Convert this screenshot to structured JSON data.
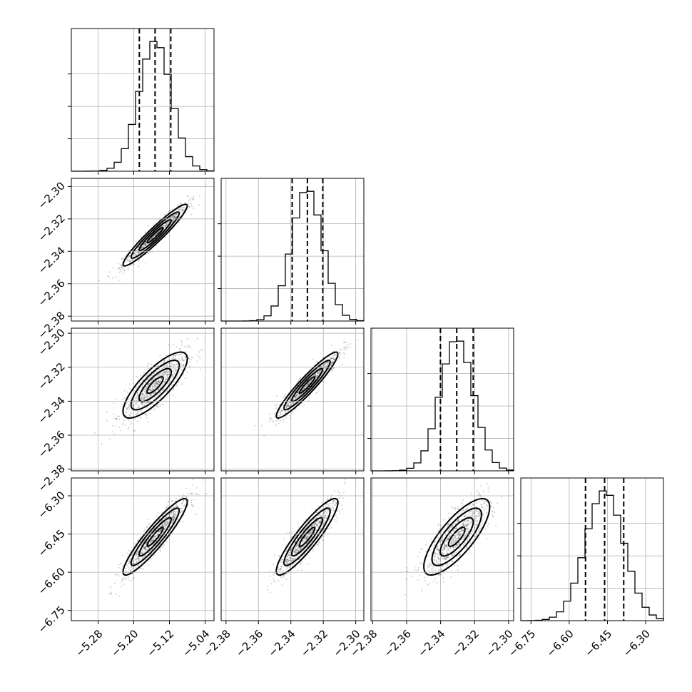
{
  "chart_data": {
    "type": "corner",
    "title": "",
    "grid": true,
    "parameters": [
      {
        "index": 0,
        "mean": -5.152,
        "std": 0.036,
        "range": [
          -5.34,
          -5.02
        ],
        "ticks": [
          -5.28,
          -5.2,
          -5.12,
          -5.04
        ],
        "tick_labels": [
          "−5.28",
          "−5.20",
          "−5.12",
          "−5.04"
        ],
        "quantiles": [
          -5.1875,
          -5.1522,
          -5.117
        ]
      },
      {
        "index": 1,
        "mean": -2.33,
        "std": 0.0095,
        "range": [
          -2.383,
          -2.295
        ],
        "ticks": [
          -2.38,
          -2.36,
          -2.34,
          -2.32,
          -2.3
        ],
        "tick_labels": [
          "−2.38",
          "−2.36",
          "−2.34",
          "−2.32",
          "−2.30"
        ],
        "quantiles": [
          -2.3392,
          -2.3298,
          -2.3203
        ]
      },
      {
        "index": 2,
        "mean": -2.3305,
        "std": 0.0097,
        "range": [
          -2.381,
          -2.297
        ],
        "ticks": [
          -2.38,
          -2.36,
          -2.34,
          -2.32,
          -2.3
        ],
        "tick_labels": [
          "−2.38",
          "−2.36",
          "−2.34",
          "−2.32",
          "−2.30"
        ],
        "quantiles": [
          -2.3401,
          -2.3305,
          -2.3208
        ]
      },
      {
        "index": 3,
        "mean": -6.461,
        "std": 0.075,
        "range": [
          -6.79,
          -6.23
        ],
        "ticks": [
          -6.75,
          -6.6,
          -6.45,
          -6.3
        ],
        "tick_labels": [
          "−6.75",
          "−6.60",
          "−6.45",
          "−6.30"
        ],
        "quantiles": [
          -6.536,
          -6.461,
          -6.386
        ]
      }
    ],
    "correlations": [
      [
        1.0,
        0.95,
        0.8,
        0.92
      ],
      [
        0.95,
        1.0,
        0.94,
        0.9
      ],
      [
        0.8,
        0.94,
        1.0,
        0.78
      ],
      [
        0.92,
        0.9,
        0.78,
        1.0
      ]
    ],
    "histogram_bins": 20,
    "contour_levels_sigma": [
      0.5,
      1.0,
      1.5,
      2.0
    ]
  }
}
